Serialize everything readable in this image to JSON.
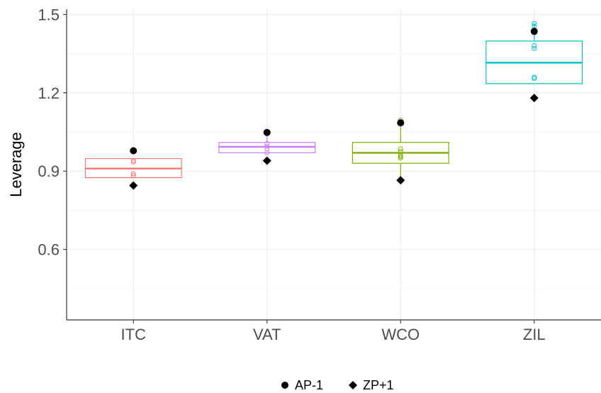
{
  "chart_data": {
    "type": "box",
    "ylabel": "Leverage",
    "ylim": [
      0.33,
      1.52
    ],
    "yticks": [
      0.6,
      0.9,
      1.2,
      1.5
    ],
    "ytick_labels": [
      "0.6",
      "0.9",
      "1.2",
      "1.5"
    ],
    "grid": true,
    "legend_position": "bottom",
    "categories": [
      "ITC",
      "VAT",
      "WCO",
      "ZIL"
    ],
    "colors": [
      "#F8766D",
      "#C77CFF",
      "#7CAE00",
      "#00BFC4"
    ],
    "boxes": [
      {
        "category": "ITC",
        "lower_whisker": 0.875,
        "q1": 0.875,
        "median": 0.91,
        "q3": 0.948,
        "upper_whisker": 0.948
      },
      {
        "category": "VAT",
        "lower_whisker": 0.97,
        "q1": 0.97,
        "median": 0.993,
        "q3": 1.01,
        "upper_whisker": 1.05
      },
      {
        "category": "WCO",
        "lower_whisker": 0.86,
        "q1": 0.93,
        "median": 0.97,
        "q3": 1.01,
        "upper_whisker": 1.095
      },
      {
        "category": "ZIL",
        "lower_whisker": 1.235,
        "q1": 1.235,
        "median": 1.315,
        "q3": 1.398,
        "upper_whisker": 1.465
      }
    ],
    "points": [
      {
        "category": "ITC",
        "values": [
          0.94,
          0.935,
          0.89,
          0.883
        ]
      },
      {
        "category": "VAT",
        "values": [
          0.995,
          0.985,
          0.97,
          1.005
        ]
      },
      {
        "category": "WCO",
        "values": [
          1.095,
          0.985,
          0.975,
          0.96,
          0.955,
          0.95,
          0.865
        ]
      },
      {
        "category": "ZIL",
        "values": [
          1.465,
          1.455,
          1.38,
          1.37,
          1.26,
          1.255
        ]
      }
    ],
    "series": [
      {
        "name": "AP-1",
        "marker": "circle",
        "values": [
          0.978,
          1.048,
          1.085,
          1.435
        ]
      },
      {
        "name": "ZP+1",
        "marker": "diamond",
        "values": [
          0.845,
          0.94,
          0.865,
          1.18
        ]
      }
    ]
  }
}
